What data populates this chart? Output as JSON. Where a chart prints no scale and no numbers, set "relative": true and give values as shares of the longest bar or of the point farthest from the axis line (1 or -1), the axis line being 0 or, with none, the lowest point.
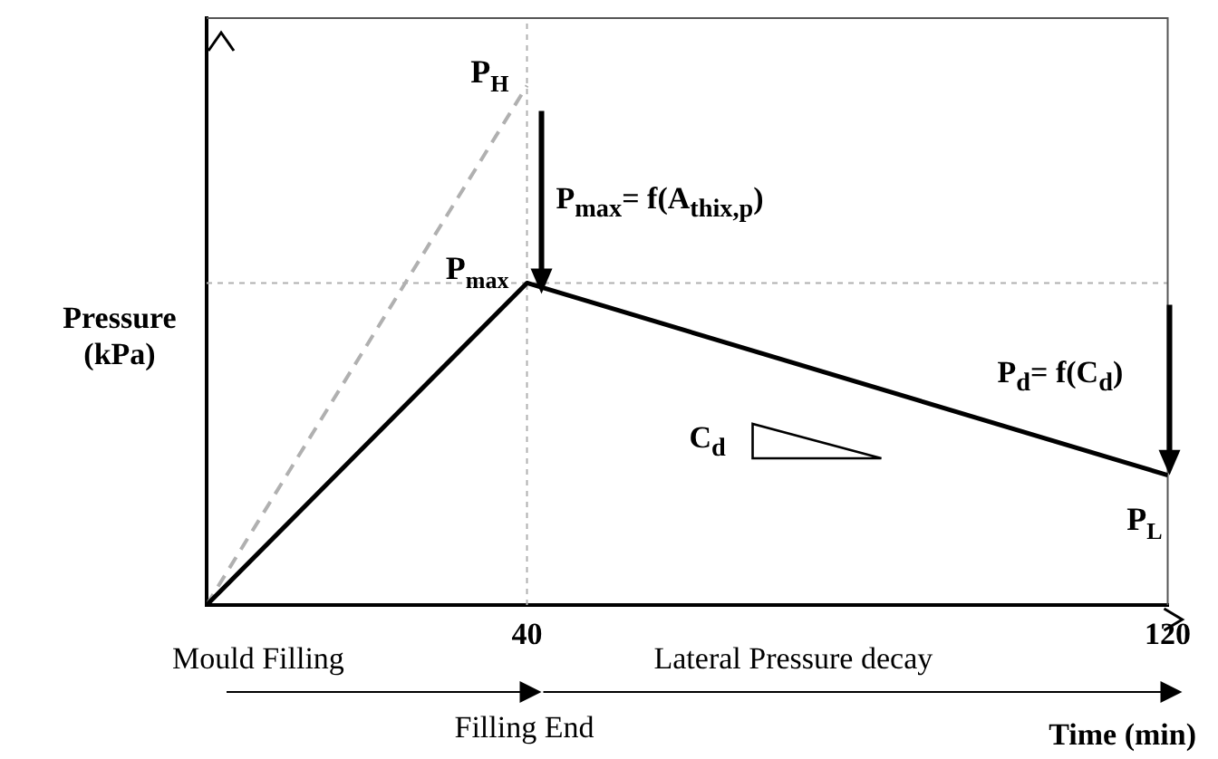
{
  "chart_data": {
    "type": "line",
    "relative": true,
    "xlabel": "Time (min)",
    "ylabel": "Pressure (kPa)",
    "xlim": [
      0,
      120
    ],
    "xticks": [
      40,
      120
    ],
    "grid": false,
    "legend": false,
    "series": [
      {
        "x": [
          0,
          40,
          120
        ],
        "values": [
          0,
          0.62,
          0.25
        ],
        "color": "#000000",
        "line_style": "solid"
      },
      {
        "x": [
          0,
          40
        ],
        "values": [
          0,
          1
        ],
        "color": "#b0b0b0",
        "line_style": "dashed"
      }
    ],
    "ref_lines": [
      {
        "axis": "x",
        "value": 40,
        "color": "#b0b0b0",
        "line_style": "dotted"
      },
      {
        "axis": "y",
        "value": 0.62,
        "color": "#b0b0b0",
        "line_style": "dotted"
      }
    ],
    "annotations": [
      "P$_{H}$",
      "P$_{max}$",
      "P$_{L}$",
      "P$_{max}$= f(A$_{thix,p}$)",
      "P$_{d}$= f(C$_{d}$)",
      "C$_{d}$",
      "Mould Filling",
      "Lateral Pressure decay",
      "Filling End"
    ]
  }
}
